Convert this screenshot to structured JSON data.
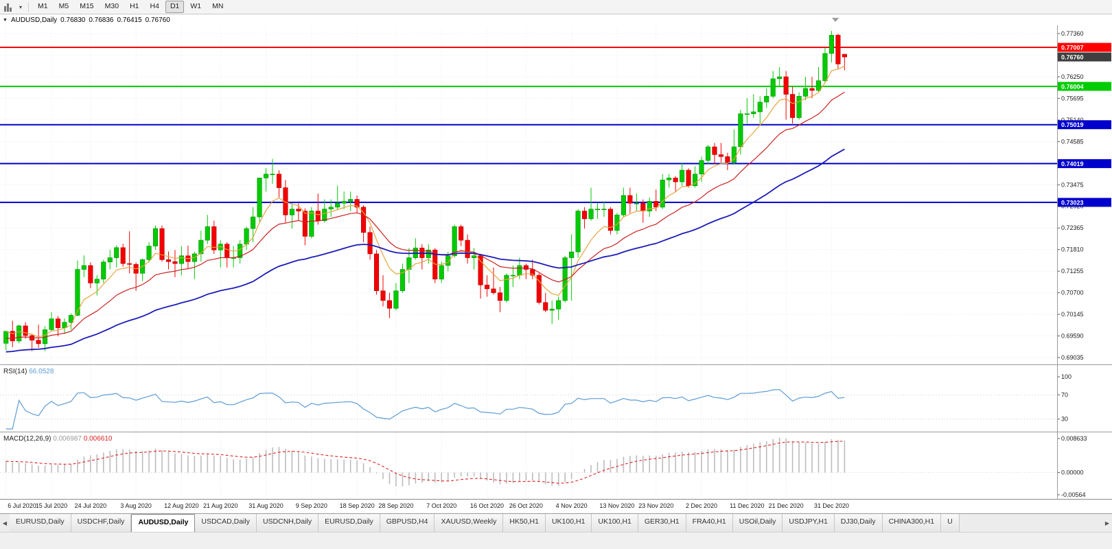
{
  "toolbar": {
    "chart_type_icon": "candlestick-chart-icon",
    "caret_icon": "▾",
    "timeframes": [
      "M1",
      "M5",
      "M15",
      "M30",
      "H1",
      "H4",
      "D1",
      "W1",
      "MN"
    ],
    "active_timeframe": "D1"
  },
  "chart_header": {
    "collapse_icon": "▼",
    "symbol": "AUDUSD,Daily",
    "open": "0.76830",
    "high": "0.76836",
    "low": "0.76415",
    "close": "0.76760"
  },
  "chart_data": {
    "type": "candlestick",
    "symbol": "AUDUSD",
    "timeframe": "Daily",
    "price_max": 0.7736,
    "price_min": 0.69035,
    "grid_step": 0.00555,
    "price_axis_labels": [
      "0.77360",
      "0.76250",
      "0.75695",
      "0.75140",
      "0.74585",
      "0.73475",
      "0.72920",
      "0.72365",
      "0.71810",
      "0.71255",
      "0.70700",
      "0.70145",
      "0.69590",
      "0.69035"
    ],
    "current_price": {
      "label": "0.76760",
      "value": 0.7676,
      "color": "#3f3f3f"
    },
    "hlines": [
      {
        "value": 0.77007,
        "label": "0.77007",
        "color": "#ff0000",
        "name": "resistance-line"
      },
      {
        "value": 0.76004,
        "label": "0.76004",
        "color": "#00cc00",
        "name": "support-line-green"
      },
      {
        "value": 0.75019,
        "label": "0.75019",
        "color": "#0000cc",
        "name": "support-line-blue-1"
      },
      {
        "value": 0.74019,
        "label": "0.74019",
        "color": "#0000cc",
        "name": "support-line-blue-2"
      },
      {
        "value": 0.73023,
        "label": "0.73023",
        "color": "#0000cc",
        "name": "support-line-blue-3"
      }
    ],
    "bull_color": "#00cb00",
    "bear_color": "#f40000",
    "candles": [
      [
        0.694,
        0.6972,
        0.6922,
        0.6971
      ],
      [
        0.6971,
        0.6998,
        0.693,
        0.6946
      ],
      [
        0.6946,
        0.6988,
        0.694,
        0.6985
      ],
      [
        0.6985,
        0.6994,
        0.6952,
        0.696
      ],
      [
        0.696,
        0.6965,
        0.692,
        0.6948
      ],
      [
        0.6948,
        0.6988,
        0.6928,
        0.6939
      ],
      [
        0.6939,
        0.6984,
        0.692,
        0.6975
      ],
      [
        0.6975,
        0.702,
        0.6972,
        0.7003
      ],
      [
        0.7003,
        0.701,
        0.6958,
        0.698
      ],
      [
        0.698,
        0.7004,
        0.6964,
        0.6994
      ],
      [
        0.6994,
        0.7017,
        0.6975,
        0.7012
      ],
      [
        0.7012,
        0.7153,
        0.701,
        0.713
      ],
      [
        0.713,
        0.7166,
        0.711,
        0.714
      ],
      [
        0.714,
        0.7148,
        0.7082,
        0.7095
      ],
      [
        0.7095,
        0.7115,
        0.7063,
        0.7105
      ],
      [
        0.7105,
        0.7155,
        0.7095,
        0.7149
      ],
      [
        0.7149,
        0.718,
        0.713,
        0.716
      ],
      [
        0.716,
        0.7192,
        0.7135,
        0.7186
      ],
      [
        0.7186,
        0.7196,
        0.7137,
        0.7145
      ],
      [
        0.7145,
        0.7228,
        0.712,
        0.7143
      ],
      [
        0.7143,
        0.7148,
        0.7075,
        0.712
      ],
      [
        0.712,
        0.7158,
        0.71,
        0.7155
      ],
      [
        0.7155,
        0.72,
        0.7148,
        0.719
      ],
      [
        0.719,
        0.7243,
        0.718,
        0.7235
      ],
      [
        0.7235,
        0.7243,
        0.715,
        0.7155
      ],
      [
        0.7155,
        0.7176,
        0.713,
        0.715
      ],
      [
        0.715,
        0.718,
        0.711,
        0.7145
      ],
      [
        0.7145,
        0.719,
        0.7115,
        0.7165
      ],
      [
        0.7165,
        0.7191,
        0.7131,
        0.715
      ],
      [
        0.715,
        0.7175,
        0.7105,
        0.717
      ],
      [
        0.717,
        0.723,
        0.715,
        0.7205
      ],
      [
        0.7205,
        0.727,
        0.7195,
        0.724
      ],
      [
        0.724,
        0.7255,
        0.717,
        0.718
      ],
      [
        0.718,
        0.7205,
        0.7135,
        0.7195
      ],
      [
        0.7195,
        0.72,
        0.7135,
        0.716
      ],
      [
        0.716,
        0.719,
        0.7135,
        0.716
      ],
      [
        0.716,
        0.7205,
        0.7145,
        0.7195
      ],
      [
        0.7195,
        0.724,
        0.718,
        0.7235
      ],
      [
        0.7235,
        0.729,
        0.72,
        0.7265
      ],
      [
        0.7265,
        0.7365,
        0.725,
        0.7365
      ],
      [
        0.7365,
        0.739,
        0.733,
        0.7375
      ],
      [
        0.7375,
        0.7414,
        0.735,
        0.7375
      ],
      [
        0.7375,
        0.7385,
        0.7315,
        0.734
      ],
      [
        0.734,
        0.736,
        0.725,
        0.727
      ],
      [
        0.727,
        0.73,
        0.7235,
        0.7285
      ],
      [
        0.7285,
        0.73,
        0.7255,
        0.728
      ],
      [
        0.728,
        0.7287,
        0.7192,
        0.7215
      ],
      [
        0.7215,
        0.729,
        0.721,
        0.728
      ],
      [
        0.728,
        0.7325,
        0.7245,
        0.7255
      ],
      [
        0.7255,
        0.731,
        0.725,
        0.7285
      ],
      [
        0.7285,
        0.731,
        0.7265,
        0.729
      ],
      [
        0.729,
        0.7345,
        0.7283,
        0.73
      ],
      [
        0.73,
        0.733,
        0.7285,
        0.7305
      ],
      [
        0.7305,
        0.733,
        0.728,
        0.731
      ],
      [
        0.731,
        0.732,
        0.7275,
        0.729
      ],
      [
        0.729,
        0.7295,
        0.72,
        0.7225
      ],
      [
        0.7225,
        0.724,
        0.7155,
        0.717
      ],
      [
        0.717,
        0.718,
        0.7065,
        0.7075
      ],
      [
        0.7075,
        0.7115,
        0.7035,
        0.705
      ],
      [
        0.705,
        0.707,
        0.7005,
        0.703
      ],
      [
        0.703,
        0.7095,
        0.7025,
        0.7075
      ],
      [
        0.7075,
        0.7145,
        0.707,
        0.713
      ],
      [
        0.713,
        0.7185,
        0.7095,
        0.716
      ],
      [
        0.716,
        0.721,
        0.7155,
        0.7185
      ],
      [
        0.7185,
        0.7195,
        0.713,
        0.716
      ],
      [
        0.716,
        0.7195,
        0.7145,
        0.718
      ],
      [
        0.718,
        0.7185,
        0.7095,
        0.7105
      ],
      [
        0.7105,
        0.715,
        0.7095,
        0.714
      ],
      [
        0.714,
        0.7175,
        0.7125,
        0.7165
      ],
      [
        0.7165,
        0.7245,
        0.716,
        0.724
      ],
      [
        0.724,
        0.7245,
        0.719,
        0.7205
      ],
      [
        0.7205,
        0.722,
        0.7145,
        0.716
      ],
      [
        0.716,
        0.7185,
        0.713,
        0.7165
      ],
      [
        0.7165,
        0.717,
        0.7055,
        0.709
      ],
      [
        0.709,
        0.7115,
        0.706,
        0.708
      ],
      [
        0.708,
        0.7135,
        0.7065,
        0.707
      ],
      [
        0.707,
        0.7085,
        0.702,
        0.705
      ],
      [
        0.705,
        0.712,
        0.7045,
        0.7115
      ],
      [
        0.7115,
        0.714,
        0.7085,
        0.7115
      ],
      [
        0.7115,
        0.716,
        0.7105,
        0.714
      ],
      [
        0.714,
        0.7145,
        0.7105,
        0.713
      ],
      [
        0.713,
        0.7155,
        0.7105,
        0.7115
      ],
      [
        0.7115,
        0.712,
        0.704,
        0.7045
      ],
      [
        0.7045,
        0.707,
        0.702,
        0.7025
      ],
      [
        0.7025,
        0.705,
        0.699,
        0.7028
      ],
      [
        0.7028,
        0.706,
        0.7,
        0.705
      ],
      [
        0.705,
        0.7165,
        0.7045,
        0.716
      ],
      [
        0.716,
        0.722,
        0.705,
        0.7175
      ],
      [
        0.7175,
        0.7285,
        0.716,
        0.728
      ],
      [
        0.728,
        0.729,
        0.7235,
        0.726
      ],
      [
        0.726,
        0.734,
        0.7255,
        0.7285
      ],
      [
        0.7285,
        0.73,
        0.726,
        0.7285
      ],
      [
        0.7285,
        0.7305,
        0.7265,
        0.7285
      ],
      [
        0.7285,
        0.729,
        0.722,
        0.723
      ],
      [
        0.723,
        0.7275,
        0.722,
        0.727
      ],
      [
        0.727,
        0.734,
        0.7265,
        0.732
      ],
      [
        0.732,
        0.734,
        0.7275,
        0.73
      ],
      [
        0.73,
        0.7325,
        0.728,
        0.73
      ],
      [
        0.73,
        0.731,
        0.725,
        0.728
      ],
      [
        0.728,
        0.7315,
        0.7265,
        0.7305
      ],
      [
        0.7305,
        0.7335,
        0.728,
        0.729
      ],
      [
        0.729,
        0.7375,
        0.7285,
        0.736
      ],
      [
        0.736,
        0.7375,
        0.734,
        0.7365
      ],
      [
        0.7365,
        0.737,
        0.733,
        0.7355
      ],
      [
        0.7355,
        0.7405,
        0.7345,
        0.7385
      ],
      [
        0.7385,
        0.739,
        0.734,
        0.7345
      ],
      [
        0.7345,
        0.7395,
        0.734,
        0.7375
      ],
      [
        0.7375,
        0.742,
        0.7355,
        0.741
      ],
      [
        0.741,
        0.745,
        0.74,
        0.7445
      ],
      [
        0.7445,
        0.7455,
        0.74,
        0.7425
      ],
      [
        0.7425,
        0.7455,
        0.7405,
        0.742
      ],
      [
        0.742,
        0.743,
        0.7385,
        0.7405
      ],
      [
        0.7405,
        0.749,
        0.74,
        0.7445
      ],
      [
        0.7445,
        0.754,
        0.7425,
        0.753
      ],
      [
        0.753,
        0.757,
        0.7505,
        0.753
      ],
      [
        0.753,
        0.758,
        0.752,
        0.7535
      ],
      [
        0.7535,
        0.7575,
        0.7505,
        0.756
      ],
      [
        0.756,
        0.7595,
        0.7545,
        0.7575
      ],
      [
        0.7575,
        0.764,
        0.757,
        0.762
      ],
      [
        0.762,
        0.765,
        0.76,
        0.7625
      ],
      [
        0.7625,
        0.764,
        0.7515,
        0.758
      ],
      [
        0.758,
        0.76,
        0.7505,
        0.752
      ],
      [
        0.752,
        0.7585,
        0.7515,
        0.7575
      ],
      [
        0.7575,
        0.7625,
        0.7565,
        0.7595
      ],
      [
        0.7595,
        0.7625,
        0.757,
        0.759
      ],
      [
        0.759,
        0.765,
        0.7585,
        0.7615
      ],
      [
        0.7615,
        0.77,
        0.7608,
        0.7685
      ],
      [
        0.7685,
        0.7743,
        0.7662,
        0.7732
      ],
      [
        0.7732,
        0.7736,
        0.7645,
        0.7658
      ],
      [
        0.7683,
        0.7684,
        0.7642,
        0.7676
      ]
    ],
    "moving_averages": [
      {
        "name": "ma-fast",
        "period": 7,
        "color": "#e8a33d"
      },
      {
        "name": "ma-medium",
        "period": 18,
        "color": "#cc2020"
      },
      {
        "name": "ma-slow",
        "period": 50,
        "color": "#1a1ab8"
      }
    ],
    "date_labels": [
      {
        "text": "6 Jul 2020",
        "i": 0
      },
      {
        "text": "15 Jul 2020",
        "i": 7
      },
      {
        "text": "24 Jul 2020",
        "i": 13
      },
      {
        "text": "3 Aug 2020",
        "i": 20
      },
      {
        "text": "12 Aug 2020",
        "i": 27
      },
      {
        "text": "21 Aug 2020",
        "i": 33
      },
      {
        "text": "31 Aug 2020",
        "i": 40
      },
      {
        "text": "9 Sep 2020",
        "i": 47
      },
      {
        "text": "18 Sep 2020",
        "i": 54
      },
      {
        "text": "28 Sep 2020",
        "i": 60
      },
      {
        "text": "7 Oct 2020",
        "i": 67
      },
      {
        "text": "16 Oct 2020",
        "i": 74
      },
      {
        "text": "26 Oct 2020",
        "i": 80
      },
      {
        "text": "4 Nov 2020",
        "i": 87
      },
      {
        "text": "13 Nov 2020",
        "i": 94
      },
      {
        "text": "23 Nov 2020",
        "i": 100
      },
      {
        "text": "2 Dec 2020",
        "i": 107
      },
      {
        "text": "11 Dec 2020",
        "i": 114
      },
      {
        "text": "21 Dec 2020",
        "i": 120
      },
      {
        "text": "31 Dec 2020",
        "i": 127
      }
    ],
    "rsi": {
      "title": "RSI(14)",
      "value": "66.0528",
      "period": 14,
      "color": "#5b9bd5",
      "levels": [
        "100",
        "70",
        "30"
      ],
      "level_values": [
        100,
        70,
        30
      ]
    },
    "macd": {
      "title": "MACD(12,26,9)",
      "main_value": "0.006987",
      "signal_value": "0.006610",
      "hist_color": "#bcbcbc",
      "signal_color": "#dd2222",
      "axis_labels": [
        "0.008633",
        "0.00000",
        "-0.00564"
      ],
      "axis_max": 0.008633,
      "axis_min": -0.00564
    }
  },
  "tabs": {
    "scroll_left_icon": "◀",
    "scroll_right_icon": "▶",
    "active_index": 2,
    "items": [
      "EURUSD,Daily",
      "USDCHF,Daily",
      "AUDUSD,Daily",
      "USDCAD,Daily",
      "USDCNH,Daily",
      "EURUSD,Daily",
      "GBPUSD,H4",
      "XAUUSD,Weekly",
      "HK50,H1",
      "UK100,H1",
      "UK100,H1",
      "GER30,H1",
      "FRA40,H1",
      "USOil,Daily",
      "USDJPY,H1",
      "DJ30,Daily",
      "CHINA300,H1",
      "U"
    ]
  }
}
